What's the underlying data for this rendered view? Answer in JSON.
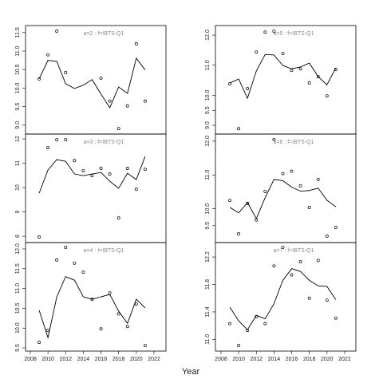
{
  "xlabel": "Year",
  "chart_data": [
    {
      "type": "scatter",
      "title": "a=2 : f=IBTS-Q1",
      "x": [
        2009,
        2010,
        2011,
        2012,
        2013,
        2014,
        2015,
        2016,
        2017,
        2018,
        2019,
        2020,
        2021
      ],
      "series": [
        {
          "style": "points",
          "values": [
            10.25,
            10.9,
            11.54,
            10.42,
            null,
            null,
            null,
            10.27,
            9.65,
            8.91,
            9.52,
            11.2,
            9.65
          ]
        },
        {
          "style": "line",
          "values": [
            10.25,
            10.75,
            10.72,
            10.12,
            9.99,
            10.08,
            10.23,
            9.84,
            9.47,
            10.03,
            9.86,
            10.81,
            10.49
          ]
        }
      ],
      "xlim": [
        2007.46,
        2023.36
      ],
      "ylim": [
        8.76,
        11.69
      ],
      "yticks": [
        {
          "value": 9,
          "label": "9.0"
        },
        9.5,
        {
          "value": 10,
          "label": "10.0"
        },
        10.5,
        {
          "value": 11,
          "label": "11.0"
        },
        11.5
      ]
    },
    {
      "type": "scatter",
      "title": "a=5 : f=IBTS-Q1",
      "x": [
        2009,
        2010,
        2011,
        2012,
        2013,
        2014,
        2015,
        2016,
        2017,
        2018,
        2019,
        2020,
        2021
      ],
      "series": [
        {
          "style": "points",
          "values": [
            10.38,
            8.89,
            10.22,
            11.44,
            12.1,
            12.13,
            11.39,
            10.83,
            10.88,
            10.41,
            10.62,
            9.98,
            10.86
          ]
        },
        {
          "style": "line",
          "values": [
            10.41,
            10.54,
            9.9,
            10.81,
            11.36,
            11.34,
            10.99,
            10.88,
            10.94,
            11.07,
            10.62,
            10.35,
            10.91
          ]
        }
      ],
      "xlim": [
        2007.37,
        2023.27
      ],
      "ylim": [
        8.71,
        12.32
      ],
      "yticks": [
        {
          "value": 9,
          "label": "9.0"
        },
        9.5,
        {
          "value": 10,
          "label": "10.0"
        },
        {
          "value": 11,
          "label": "11.0"
        },
        {
          "value": 12,
          "label": "12.0"
        }
      ]
    },
    {
      "type": "scatter",
      "title": "a=3 : f=IBTS-Q1",
      "x": [
        2009,
        2010,
        2011,
        2012,
        2013,
        2014,
        2015,
        2016,
        2017,
        2018,
        2019,
        2020,
        2021
      ],
      "series": [
        {
          "style": "points",
          "values": [
            7.97,
            11.64,
            11.97,
            11.97,
            11.11,
            10.69,
            10.49,
            10.79,
            10.56,
            8.75,
            10.79,
            9.93,
            10.75
          ]
        },
        {
          "style": "line",
          "values": [
            9.77,
            10.72,
            11.15,
            11.08,
            10.56,
            10.49,
            10.56,
            10.62,
            10.26,
            9.97,
            10.59,
            10.33,
            11.28
          ]
        }
      ],
      "xlim": [
        2007.46,
        2023.36
      ],
      "ylim": [
        7.74,
        12.2
      ],
      "yticks": [
        8,
        9,
        10,
        11,
        12
      ]
    },
    {
      "type": "scatter",
      "title": "a=6 : f=IBTS-Q1",
      "x": [
        2009,
        2010,
        2011,
        2012,
        2013,
        2014,
        2015,
        2016,
        2017,
        2018,
        2019,
        2020,
        2021
      ],
      "series": [
        {
          "style": "points",
          "values": [
            10.25,
            9.26,
            10.16,
            9.67,
            10.51,
            12.05,
            11.04,
            11.11,
            10.68,
            10.04,
            10.87,
            9.19,
            9.45
          ]
        },
        {
          "style": "line",
          "values": [
            10.04,
            9.88,
            10.18,
            9.71,
            10.33,
            10.87,
            10.83,
            10.64,
            10.52,
            10.54,
            10.61,
            10.25,
            10.06
          ]
        }
      ],
      "xlim": [
        2007.37,
        2023.27
      ],
      "ylim": [
        9.0,
        12.21
      ],
      "yticks": [
        9.5,
        {
          "value": 10,
          "label": "10.0"
        },
        {
          "value": 11,
          "label": "11.0"
        },
        {
          "value": 12,
          "label": "12.0"
        }
      ]
    },
    {
      "type": "scatter",
      "title": "a=4 : f=IBTS-Q1",
      "x": [
        2009,
        2010,
        2011,
        2012,
        2013,
        2014,
        2015,
        2016,
        2017,
        2018,
        2019,
        2020,
        2021
      ],
      "series": [
        {
          "style": "points",
          "values": [
            9.64,
            9.94,
            11.72,
            12.04,
            11.64,
            11.41,
            10.73,
            9.98,
            10.89,
            10.36,
            10.04,
            10.61,
            9.56
          ]
        },
        {
          "style": "line",
          "values": [
            10.45,
            9.76,
            10.79,
            11.3,
            11.21,
            10.79,
            10.73,
            10.79,
            10.85,
            10.43,
            10.12,
            10.73,
            10.51
          ]
        }
      ],
      "xlim": [
        2007.46,
        2023.36
      ],
      "ylim": [
        9.42,
        12.16
      ],
      "xticks": [
        2008,
        2010,
        2012,
        2014,
        2016,
        2018,
        2020,
        2022
      ],
      "yticks": [
        9.5,
        {
          "value": 10,
          "label": "10.0"
        },
        10.5,
        {
          "value": 11,
          "label": "11.0"
        },
        11.5,
        {
          "value": 12,
          "label": "12.0"
        }
      ]
    },
    {
      "type": "scatter",
      "title": "a=7 : f=IBTS-Q1",
      "x": [
        2009,
        2010,
        2011,
        2012,
        2013,
        2014,
        2015,
        2016,
        2017,
        2018,
        2019,
        2020,
        2021
      ],
      "series": [
        {
          "style": "points",
          "values": [
            11.23,
            10.91,
            11.13,
            11.33,
            11.23,
            12.07,
            12.34,
            11.94,
            12.13,
            11.6,
            12.15,
            11.57,
            11.31
          ]
        },
        {
          "style": "line",
          "values": [
            11.47,
            11.27,
            11.14,
            11.35,
            11.3,
            11.52,
            11.86,
            12.03,
            11.99,
            11.86,
            11.78,
            11.77,
            11.58
          ]
        }
      ],
      "xlim": [
        2007.37,
        2023.27
      ],
      "ylim": [
        10.83,
        12.41
      ],
      "xticks": [
        2008,
        2010,
        2012,
        2014,
        2016,
        2018,
        2020,
        2022
      ],
      "yticks": [
        {
          "value": 11,
          "label": "11.0"
        },
        11.4,
        11.8,
        12.2
      ]
    }
  ]
}
